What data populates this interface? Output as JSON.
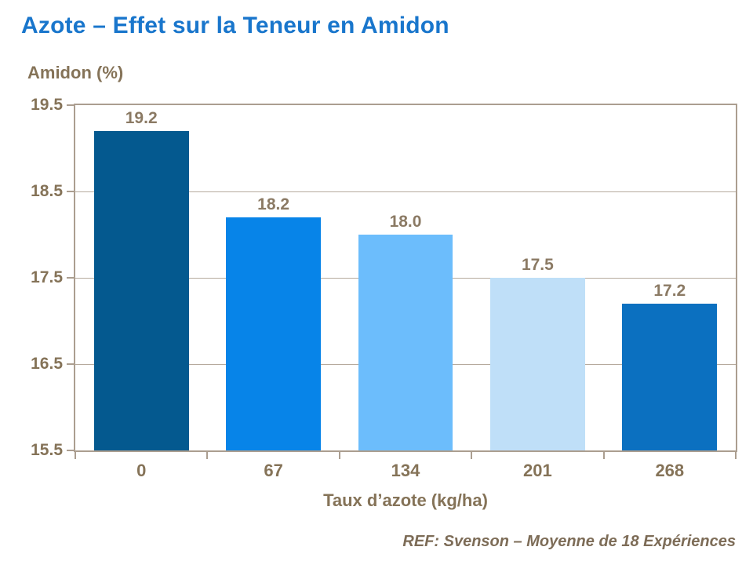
{
  "page": {
    "title": "Azote – Effet sur la Teneur en Amidon",
    "footer": "REF: Svenson – Moyenne de 18 Expériences"
  },
  "chart_data": {
    "type": "bar",
    "title": "Azote – Effet sur la Teneur en Amidon",
    "ylabel": "Amidon (%)",
    "xlabel": "Taux d’azote (kg/ha)",
    "categories": [
      "0",
      "67",
      "134",
      "201",
      "268"
    ],
    "values": [
      19.2,
      18.2,
      18.0,
      17.5,
      17.2
    ],
    "data_labels": [
      "19.2",
      "18.2",
      "18.0",
      "17.5",
      "17.2"
    ],
    "bar_colors": [
      "#04598f",
      "#0784e8",
      "#6cbdfc",
      "#bfdff8",
      "#0b70c0"
    ],
    "ylim": [
      15.5,
      19.5
    ],
    "y_ticks": [
      19.5,
      18.5,
      17.5,
      16.5,
      15.5
    ],
    "y_tick_labels": [
      "19.5",
      "18.5",
      "17.5",
      "16.5",
      "15.5"
    ],
    "grid": true,
    "legend": false,
    "annotation": "REF: Svenson – Moyenne de 18 Expériences"
  },
  "colors": {
    "title_blue": "#1976cc",
    "axis_text_brown": "#857358",
    "axis_line": "#ab9e90",
    "gridline": "#b6aa9d",
    "background": "#ffffff"
  }
}
